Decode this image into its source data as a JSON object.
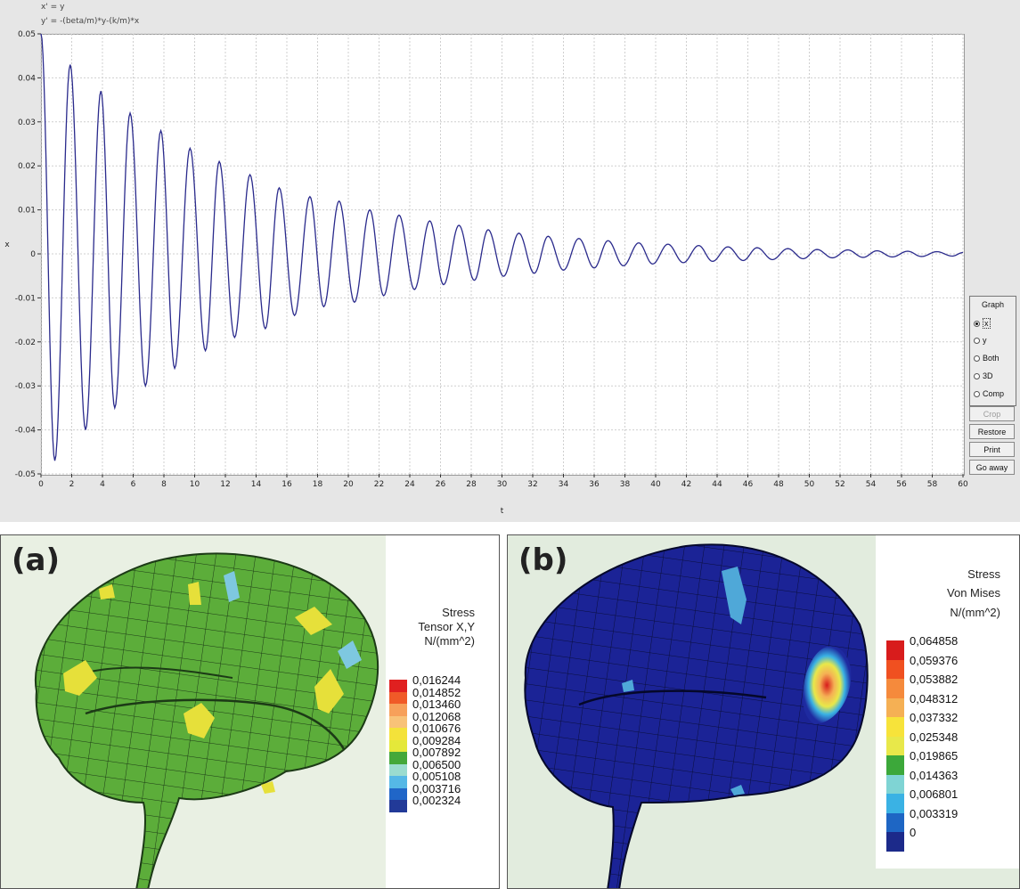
{
  "equations": [
    "x' = y",
    "y' = -(beta/m)*y-(k/m)*x"
  ],
  "chart_data": {
    "type": "line",
    "xlabel": "t",
    "ylabel": "x",
    "xlim": [
      0,
      60
    ],
    "ylim": [
      -0.05,
      0.05
    ],
    "grid": true,
    "line_color": "#2a2a8c",
    "xticks": [
      "0",
      "2",
      "4",
      "6",
      "8",
      "10",
      "12",
      "14",
      "16",
      "18",
      "20",
      "22",
      "24",
      "26",
      "28",
      "30",
      "32",
      "34",
      "36",
      "38",
      "40",
      "42",
      "44",
      "46",
      "48",
      "50",
      "52",
      "54",
      "56",
      "58",
      "60"
    ],
    "yticks": [
      "0.05",
      "0.04",
      "0.03",
      "0.02",
      "0.01",
      "0",
      "-0.01",
      "-0.02",
      "-0.03",
      "-0.04",
      "-0.05"
    ],
    "series": [
      {
        "x": [
          0,
          0.9,
          1.9,
          2.9,
          3.9,
          4.8,
          5.8,
          6.8,
          7.8,
          8.7,
          9.7,
          10.7,
          11.6,
          12.6,
          13.6,
          14.6,
          15.5,
          16.5,
          17.5,
          18.4,
          19.4,
          20.4,
          21.4,
          22.3,
          23.3,
          24.3,
          25.3,
          26.2,
          27.2,
          28.2,
          29.1,
          30.1,
          31.1,
          32.1,
          33.0,
          34.0,
          35.0,
          36.0,
          36.9,
          37.9,
          38.9,
          39.8,
          40.8,
          41.8,
          42.8,
          43.7,
          44.7,
          45.7,
          46.6,
          47.6,
          48.6,
          49.6,
          50.5,
          51.5,
          52.5,
          53.5,
          54.4,
          55.4,
          56.4,
          57.3,
          58.3,
          59.3,
          60
        ],
        "y": [
          0.05,
          -0.047,
          0.043,
          -0.04,
          0.037,
          -0.035,
          0.032,
          -0.03,
          0.028,
          -0.026,
          0.024,
          -0.022,
          0.021,
          -0.019,
          0.018,
          -0.017,
          0.015,
          -0.014,
          0.013,
          -0.012,
          0.012,
          -0.011,
          0.01,
          -0.0095,
          0.0088,
          -0.0081,
          0.0075,
          -0.007,
          0.0065,
          -0.006,
          0.0055,
          -0.0051,
          0.0047,
          -0.0044,
          0.004,
          -0.0037,
          0.0035,
          -0.0032,
          0.003,
          -0.0027,
          0.0025,
          -0.0023,
          0.0022,
          -0.002,
          0.0019,
          -0.0017,
          0.0016,
          -0.0015,
          0.0014,
          -0.0013,
          0.0012,
          -0.0011,
          0.001,
          -0.0009,
          0.0009,
          -0.0008,
          0.0007,
          -0.0007,
          0.0006,
          -0.0006,
          0.0005,
          -0.0005,
          0.0003
        ]
      }
    ]
  },
  "graph_panel": {
    "title": "Graph",
    "options": [
      {
        "label": "x",
        "selected": true
      },
      {
        "label": "y",
        "selected": false
      },
      {
        "label": "Both",
        "selected": false
      },
      {
        "label": "3D",
        "selected": false
      },
      {
        "label": "Comp",
        "selected": false
      }
    ]
  },
  "buttons": {
    "crop": "Crop",
    "restore": "Restore",
    "print": "Print",
    "go_away": "Go away"
  },
  "panel_a": {
    "letter": "(a)",
    "legend_title": [
      "Stress",
      "Tensor X,Y",
      "N/(mm^2)"
    ],
    "legend_values": [
      "0,016244",
      "0,014852",
      "0,013460",
      "0,012068",
      "0,010676",
      "0,009284",
      "0,007892",
      "0,006500",
      "0,005108",
      "0,003716",
      "0,002324"
    ],
    "legend_colors": [
      "#e02020",
      "#f05a28",
      "#f7a05a",
      "#f8c278",
      "#f4e23a",
      "#e4e83a",
      "#44a83a",
      "#9adccf",
      "#55b8e6",
      "#2066c8",
      "#223a98"
    ]
  },
  "panel_b": {
    "letter": "(b)",
    "legend_title": [
      "Stress",
      "Von Mises",
      "N/(mm^2)"
    ],
    "legend_values": [
      "0,064858",
      "0,059376",
      "0,053882",
      "0,048312",
      "0,037332",
      "0,025348",
      "0,019865",
      "0,014363",
      "0,006801",
      "0,003319",
      "0"
    ],
    "legend_colors": [
      "#d81c1c",
      "#f05020",
      "#f58a3c",
      "#f5b054",
      "#f7e33a",
      "#e8e84a",
      "#3ca83a",
      "#7fd4d4",
      "#3ab2e4",
      "#1e66c4",
      "#1c2a8a"
    ]
  }
}
